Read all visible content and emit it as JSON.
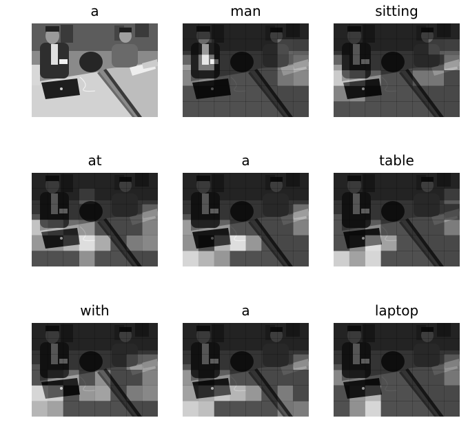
{
  "figure": {
    "panels": [
      {
        "word": "a",
        "highlight": null
      },
      {
        "word": "man",
        "highlight": [
          [
            2,
            1,
            0.95
          ],
          [
            2,
            0,
            0.55
          ],
          [
            1,
            1,
            0.5
          ],
          [
            3,
            1,
            0.45
          ],
          [
            1,
            6,
            0.55
          ],
          [
            2,
            6,
            0.45
          ],
          [
            3,
            6,
            0.4
          ],
          [
            1,
            7,
            0.5
          ],
          [
            2,
            7,
            0.6
          ],
          [
            3,
            7,
            0.55
          ],
          [
            3,
            0,
            0.4
          ]
        ]
      },
      {
        "word": "sitting",
        "highlight": [
          [
            3,
            0,
            0.8
          ],
          [
            3,
            1,
            0.7
          ],
          [
            2,
            0,
            0.55
          ],
          [
            1,
            7,
            0.5
          ],
          [
            1,
            6,
            0.45
          ],
          [
            2,
            7,
            0.6
          ],
          [
            3,
            2,
            0.5
          ],
          [
            4,
            0,
            0.4
          ],
          [
            4,
            1,
            0.45
          ],
          [
            3,
            5,
            0.4
          ],
          [
            3,
            6,
            0.4
          ]
        ]
      },
      {
        "word": "at",
        "highlight": [
          [
            3,
            0,
            0.75
          ],
          [
            3,
            1,
            0.7
          ],
          [
            3,
            2,
            0.6
          ],
          [
            4,
            3,
            0.95
          ],
          [
            4,
            2,
            0.7
          ],
          [
            4,
            4,
            0.65
          ],
          [
            4,
            0,
            0.55
          ],
          [
            4,
            1,
            0.55
          ],
          [
            3,
            3,
            0.55
          ],
          [
            5,
            3,
            0.5
          ],
          [
            3,
            7,
            0.5
          ],
          [
            4,
            7,
            0.55
          ],
          [
            4,
            6,
            0.45
          ],
          [
            2,
            7,
            0.5
          ],
          [
            1,
            3,
            0.4
          ]
        ]
      },
      {
        "word": "a",
        "highlight": [
          [
            4,
            3,
            0.95
          ],
          [
            4,
            2,
            0.7
          ],
          [
            4,
            4,
            0.55
          ],
          [
            4,
            0,
            0.5
          ],
          [
            5,
            0,
            0.9
          ],
          [
            5,
            1,
            0.7
          ],
          [
            5,
            2,
            0.55
          ],
          [
            3,
            0,
            0.55
          ],
          [
            3,
            1,
            0.55
          ],
          [
            3,
            2,
            0.55
          ],
          [
            2,
            7,
            0.6
          ],
          [
            3,
            7,
            0.5
          ],
          [
            6,
            6,
            0.35
          ]
        ]
      },
      {
        "word": "table",
        "highlight": [
          [
            4,
            2,
            0.95
          ],
          [
            5,
            2,
            0.9
          ],
          [
            5,
            0,
            0.85
          ],
          [
            5,
            1,
            0.6
          ],
          [
            4,
            3,
            0.6
          ],
          [
            4,
            1,
            0.45
          ],
          [
            3,
            2,
            0.45
          ],
          [
            6,
            2,
            0.45
          ],
          [
            3,
            7,
            0.45
          ],
          [
            1,
            7,
            0.45
          ]
        ]
      },
      {
        "word": "with",
        "highlight": [
          [
            4,
            0,
            0.9
          ],
          [
            4,
            1,
            0.85
          ],
          [
            4,
            3,
            0.55
          ],
          [
            4,
            4,
            0.6
          ],
          [
            4,
            6,
            0.45
          ],
          [
            5,
            0,
            0.7
          ],
          [
            5,
            1,
            0.6
          ],
          [
            3,
            1,
            0.55
          ],
          [
            3,
            2,
            0.6
          ],
          [
            3,
            4,
            0.5
          ],
          [
            3,
            7,
            0.5
          ],
          [
            2,
            6,
            0.45
          ],
          [
            2,
            7,
            0.5
          ],
          [
            4,
            7,
            0.55
          ]
        ]
      },
      {
        "word": "a",
        "highlight": [
          [
            5,
            0,
            0.85
          ],
          [
            5,
            1,
            0.75
          ],
          [
            4,
            0,
            0.6
          ],
          [
            4,
            1,
            0.65
          ],
          [
            4,
            2,
            0.8
          ],
          [
            4,
            3,
            0.7
          ],
          [
            4,
            4,
            0.55
          ],
          [
            4,
            6,
            0.45
          ],
          [
            3,
            0,
            0.5
          ],
          [
            3,
            2,
            0.5
          ],
          [
            2,
            7,
            0.5
          ],
          [
            5,
            6,
            0.4
          ],
          [
            5,
            7,
            0.45
          ]
        ]
      },
      {
        "word": "laptop",
        "highlight": [
          [
            4,
            2,
            0.7
          ],
          [
            5,
            2,
            0.9
          ],
          [
            4,
            1,
            0.55
          ],
          [
            5,
            1,
            0.5
          ],
          [
            3,
            0,
            0.4
          ],
          [
            3,
            1,
            0.35
          ],
          [
            6,
            2,
            0.4
          ],
          [
            2,
            7,
            0.4
          ],
          [
            3,
            7,
            0.4
          ]
        ]
      }
    ]
  }
}
